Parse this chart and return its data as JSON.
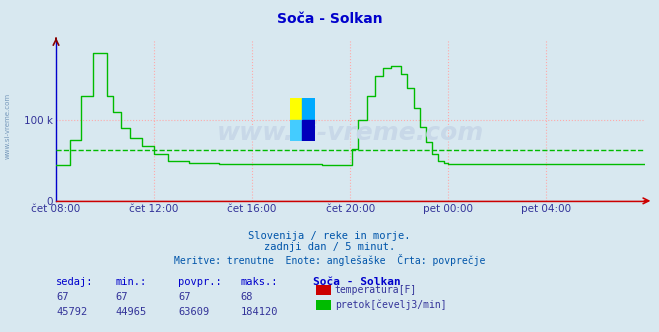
{
  "title": "Soča - Solkan",
  "background_color": "#d8e8f0",
  "plot_bg_color": "#d8e8f0",
  "title_color": "#0000cc",
  "title_fontsize": 10,
  "ylim": [
    0,
    200000
  ],
  "yticks": [
    0,
    100000
  ],
  "ytick_labels": [
    "0",
    "100 k"
  ],
  "grid_color": "#ffaaaa",
  "avg_color": "#00bb00",
  "avg_value": 63609,
  "flow_color": "#00bb00",
  "temp_color": "#cc0000",
  "watermark_text": "www.si-vreme.com",
  "watermark_color": "#c8d8e8",
  "sidebar_text": "www.si-vreme.com",
  "sidebar_color": "#7799bb",
  "x_tick_labels": [
    "čet 08:00",
    "čet 12:00",
    "čet 16:00",
    "čet 20:00",
    "pet 00:00",
    "pet 04:00"
  ],
  "x_tick_positions": [
    0,
    48,
    96,
    144,
    192,
    240
  ],
  "total_points": 288,
  "subtitle1": "Slovenija / reke in morje.",
  "subtitle2": "zadnji dan / 5 minut.",
  "subtitle3": "Meritve: trenutne  Enote: anglešaške  Črta: povprečje",
  "subtitle_color": "#0055aa",
  "table_header": [
    "sedaj:",
    "min.:",
    "povpr.:",
    "maks.:",
    "Soča - Solkan"
  ],
  "table_row1": [
    "67",
    "67",
    "67",
    "68"
  ],
  "table_row2": [
    "45792",
    "44965",
    "63609",
    "184120"
  ],
  "legend_temp_label": "temperatura[F]",
  "legend_flow_label": "pretok[čevelj3/min]",
  "flow_data_raw": [
    [
      0,
      45000
    ],
    [
      3,
      45000
    ],
    [
      7,
      75000
    ],
    [
      12,
      130000
    ],
    [
      18,
      184120
    ],
    [
      22,
      184120
    ],
    [
      25,
      130000
    ],
    [
      28,
      110000
    ],
    [
      32,
      90000
    ],
    [
      36,
      78000
    ],
    [
      42,
      68000
    ],
    [
      48,
      58000
    ],
    [
      55,
      50000
    ],
    [
      65,
      47000
    ],
    [
      80,
      46000
    ],
    [
      96,
      45500
    ],
    [
      110,
      45200
    ],
    [
      130,
      45000
    ],
    [
      144,
      45000
    ],
    [
      145,
      65000
    ],
    [
      148,
      100000
    ],
    [
      152,
      130000
    ],
    [
      156,
      155000
    ],
    [
      160,
      165000
    ],
    [
      164,
      168000
    ],
    [
      167,
      168000
    ],
    [
      169,
      158000
    ],
    [
      172,
      140000
    ],
    [
      175,
      115000
    ],
    [
      178,
      92000
    ],
    [
      181,
      73000
    ],
    [
      184,
      58000
    ],
    [
      187,
      50000
    ],
    [
      190,
      47500
    ],
    [
      192,
      46000
    ],
    [
      240,
      45800
    ],
    [
      288,
      45800
    ]
  ],
  "logo_colors": [
    "#ffff00",
    "#00aaff",
    "#44ccff",
    "#0000bb"
  ]
}
